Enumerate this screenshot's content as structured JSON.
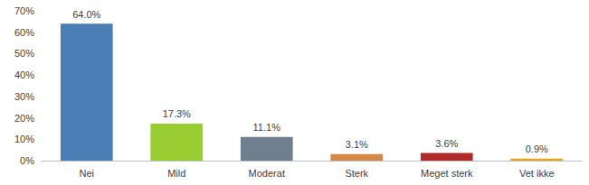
{
  "chart_data": {
    "type": "bar",
    "categories": [
      "Nei",
      "Mild",
      "Moderat",
      "Sterk",
      "Meget sterk",
      "Vet ikke"
    ],
    "values": [
      64.0,
      17.3,
      11.1,
      3.1,
      3.6,
      0.9
    ],
    "value_labels": [
      "64.0%",
      "17.3%",
      "11.1%",
      "3.1%",
      "3.6%",
      "0.9%"
    ],
    "colors": [
      "#4a7eb5",
      "#9acd32",
      "#6f7f8e",
      "#d2894a",
      "#b02a2a",
      "#e8a31f"
    ],
    "ylim": [
      0,
      70
    ],
    "yticks": [
      {
        "value": 0,
        "label": "0%"
      },
      {
        "value": 10,
        "label": "10%"
      },
      {
        "value": 20,
        "label": "20%"
      },
      {
        "value": 30,
        "label": "30%"
      },
      {
        "value": 40,
        "label": "40%"
      },
      {
        "value": 50,
        "label": "50%"
      },
      {
        "value": 60,
        "label": "60%"
      },
      {
        "value": 70,
        "label": "70%"
      }
    ],
    "grid": false,
    "data_labels": true
  }
}
